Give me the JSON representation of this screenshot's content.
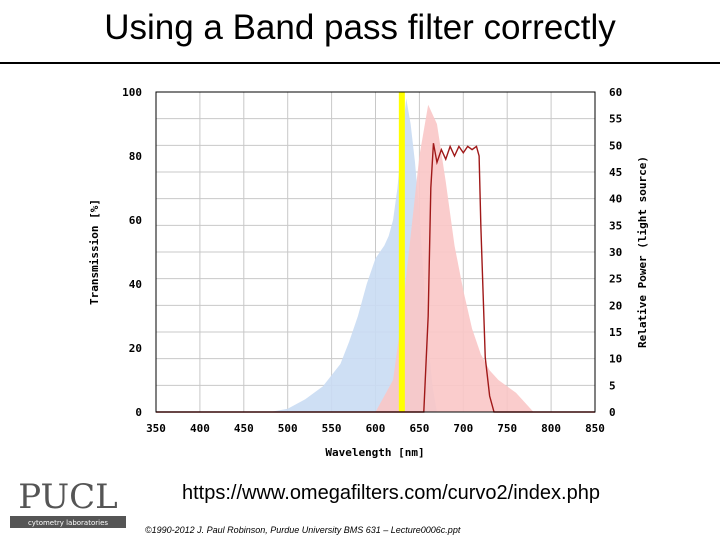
{
  "slide": {
    "title": "Using a Band pass filter correctly",
    "url": "https://www.omegafilters.com/curvo2/index.php",
    "copyright": "©1990-2012 J. Paul Robinson, Purdue University BMS 631 – Lecture0006c.ppt",
    "logo_text": "PUCL",
    "logo_subtext": "cytometry laboratories"
  },
  "colors": {
    "source_spectrum": "#c9dbf3",
    "emission_spectrum": "#f9c7c7",
    "laser_line": "#ffff00",
    "filter_curve": "#a01818",
    "grid": "#c8c8c8",
    "logo": "#555555"
  },
  "chart_data": {
    "type": "area",
    "xlabel": "Wavelength [nm]",
    "ylabel": "Transmission [%]",
    "y2label": "Relative Power (light source)",
    "xlim": [
      350,
      850
    ],
    "ylim": [
      0,
      100
    ],
    "y2lim": [
      0,
      60
    ],
    "xticks": [
      "350",
      "400",
      "450",
      "500",
      "550",
      "600",
      "650",
      "700",
      "750",
      "800",
      "850"
    ],
    "yticks": [
      "0",
      "20",
      "40",
      "60",
      "80",
      "100"
    ],
    "y2ticks": [
      "0",
      "5",
      "10",
      "15",
      "20",
      "25",
      "30",
      "35",
      "40",
      "45",
      "50",
      "55",
      "60"
    ],
    "grid": true,
    "laser_line_nm": 630,
    "series": [
      {
        "kind": "source",
        "x": [
          350,
          480,
          500,
          520,
          540,
          560,
          570,
          580,
          590,
          600,
          605,
          610,
          615,
          620,
          625,
          630,
          635,
          640,
          645,
          650,
          655,
          660,
          665,
          670
        ],
        "y": [
          0,
          0,
          1,
          4,
          8,
          15,
          22,
          30,
          40,
          48,
          50,
          52,
          55,
          60,
          70,
          85,
          98,
          90,
          78,
          62,
          42,
          22,
          8,
          0
        ]
      },
      {
        "kind": "emission",
        "x": [
          600,
          620,
          630,
          640,
          650,
          660,
          670,
          680,
          690,
          700,
          710,
          720,
          730,
          740,
          750,
          760,
          770,
          780
        ],
        "y": [
          0,
          10,
          30,
          55,
          80,
          96,
          90,
          72,
          52,
          38,
          26,
          18,
          13,
          10,
          8,
          6,
          3,
          0
        ]
      },
      {
        "kind": "filter",
        "x": [
          350,
          655,
          660,
          663,
          666,
          670,
          675,
          680,
          685,
          690,
          695,
          700,
          705,
          710,
          715,
          718,
          720,
          725,
          730,
          735,
          1000
        ],
        "y": [
          0,
          0,
          30,
          70,
          84,
          78,
          82,
          79,
          83,
          80,
          83,
          81,
          83,
          82,
          83,
          80,
          58,
          17,
          5,
          0,
          0
        ]
      }
    ]
  }
}
